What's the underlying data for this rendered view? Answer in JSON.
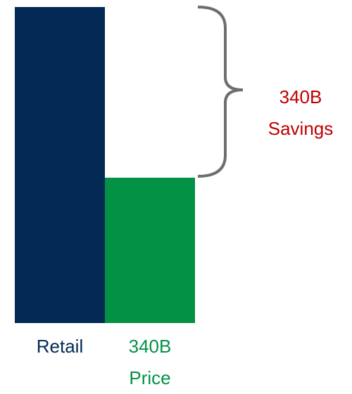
{
  "chart_data": {
    "type": "bar",
    "categories": [
      "Retail",
      "340B Price"
    ],
    "values": [
      100,
      46
    ],
    "colors": [
      "#022a54",
      "#039146"
    ],
    "annotations": [
      {
        "text": "340B Savings",
        "color": "#c00000"
      }
    ]
  }
}
